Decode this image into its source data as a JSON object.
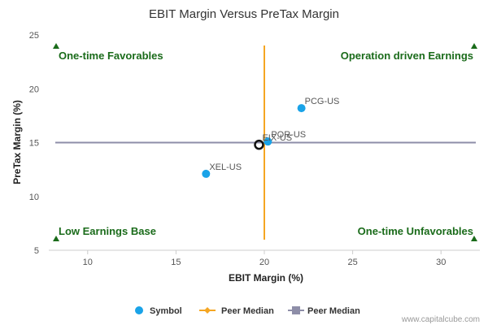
{
  "chart_data": {
    "type": "scatter",
    "title": "EBIT Margin Versus PreTax Margin",
    "xlabel": "EBIT Margin (%)",
    "ylabel": "PreTax Margin (%)",
    "xlim": [
      7.8,
      32.2
    ],
    "ylim": [
      5,
      25
    ],
    "xticks": [
      "10",
      "15",
      "20",
      "25",
      "30"
    ],
    "yticks": [
      "5",
      "10",
      "15",
      "20",
      "25"
    ],
    "grid": false,
    "legend_position": "bottom",
    "series": [
      {
        "name": "Symbol",
        "color": "#1aa3e8",
        "points": [
          {
            "label": "PCG-US",
            "x": 22.1,
            "y": 18.2
          },
          {
            "label": "POR-US",
            "x": 20.2,
            "y": 15.1
          },
          {
            "label": "XEL-US",
            "x": 16.7,
            "y": 12.1
          }
        ]
      }
    ],
    "highlight_point": {
      "label": "EIX-US",
      "x": 19.7,
      "y": 14.8
    },
    "peer_median_x": {
      "name": "Peer Median",
      "value": 20.0,
      "color": "#f5a623"
    },
    "peer_median_y": {
      "name": "Peer Median",
      "value": 15.0,
      "color": "#8e8ea8"
    },
    "quadrants": {
      "top_left": "One-time Favorables",
      "top_right": "Operation driven Earnings",
      "bottom_left": "Low Earnings Base",
      "bottom_right": "One-time Unfavorables",
      "color": "#1a6b1a"
    },
    "credit": "www.capitalcube.com"
  }
}
